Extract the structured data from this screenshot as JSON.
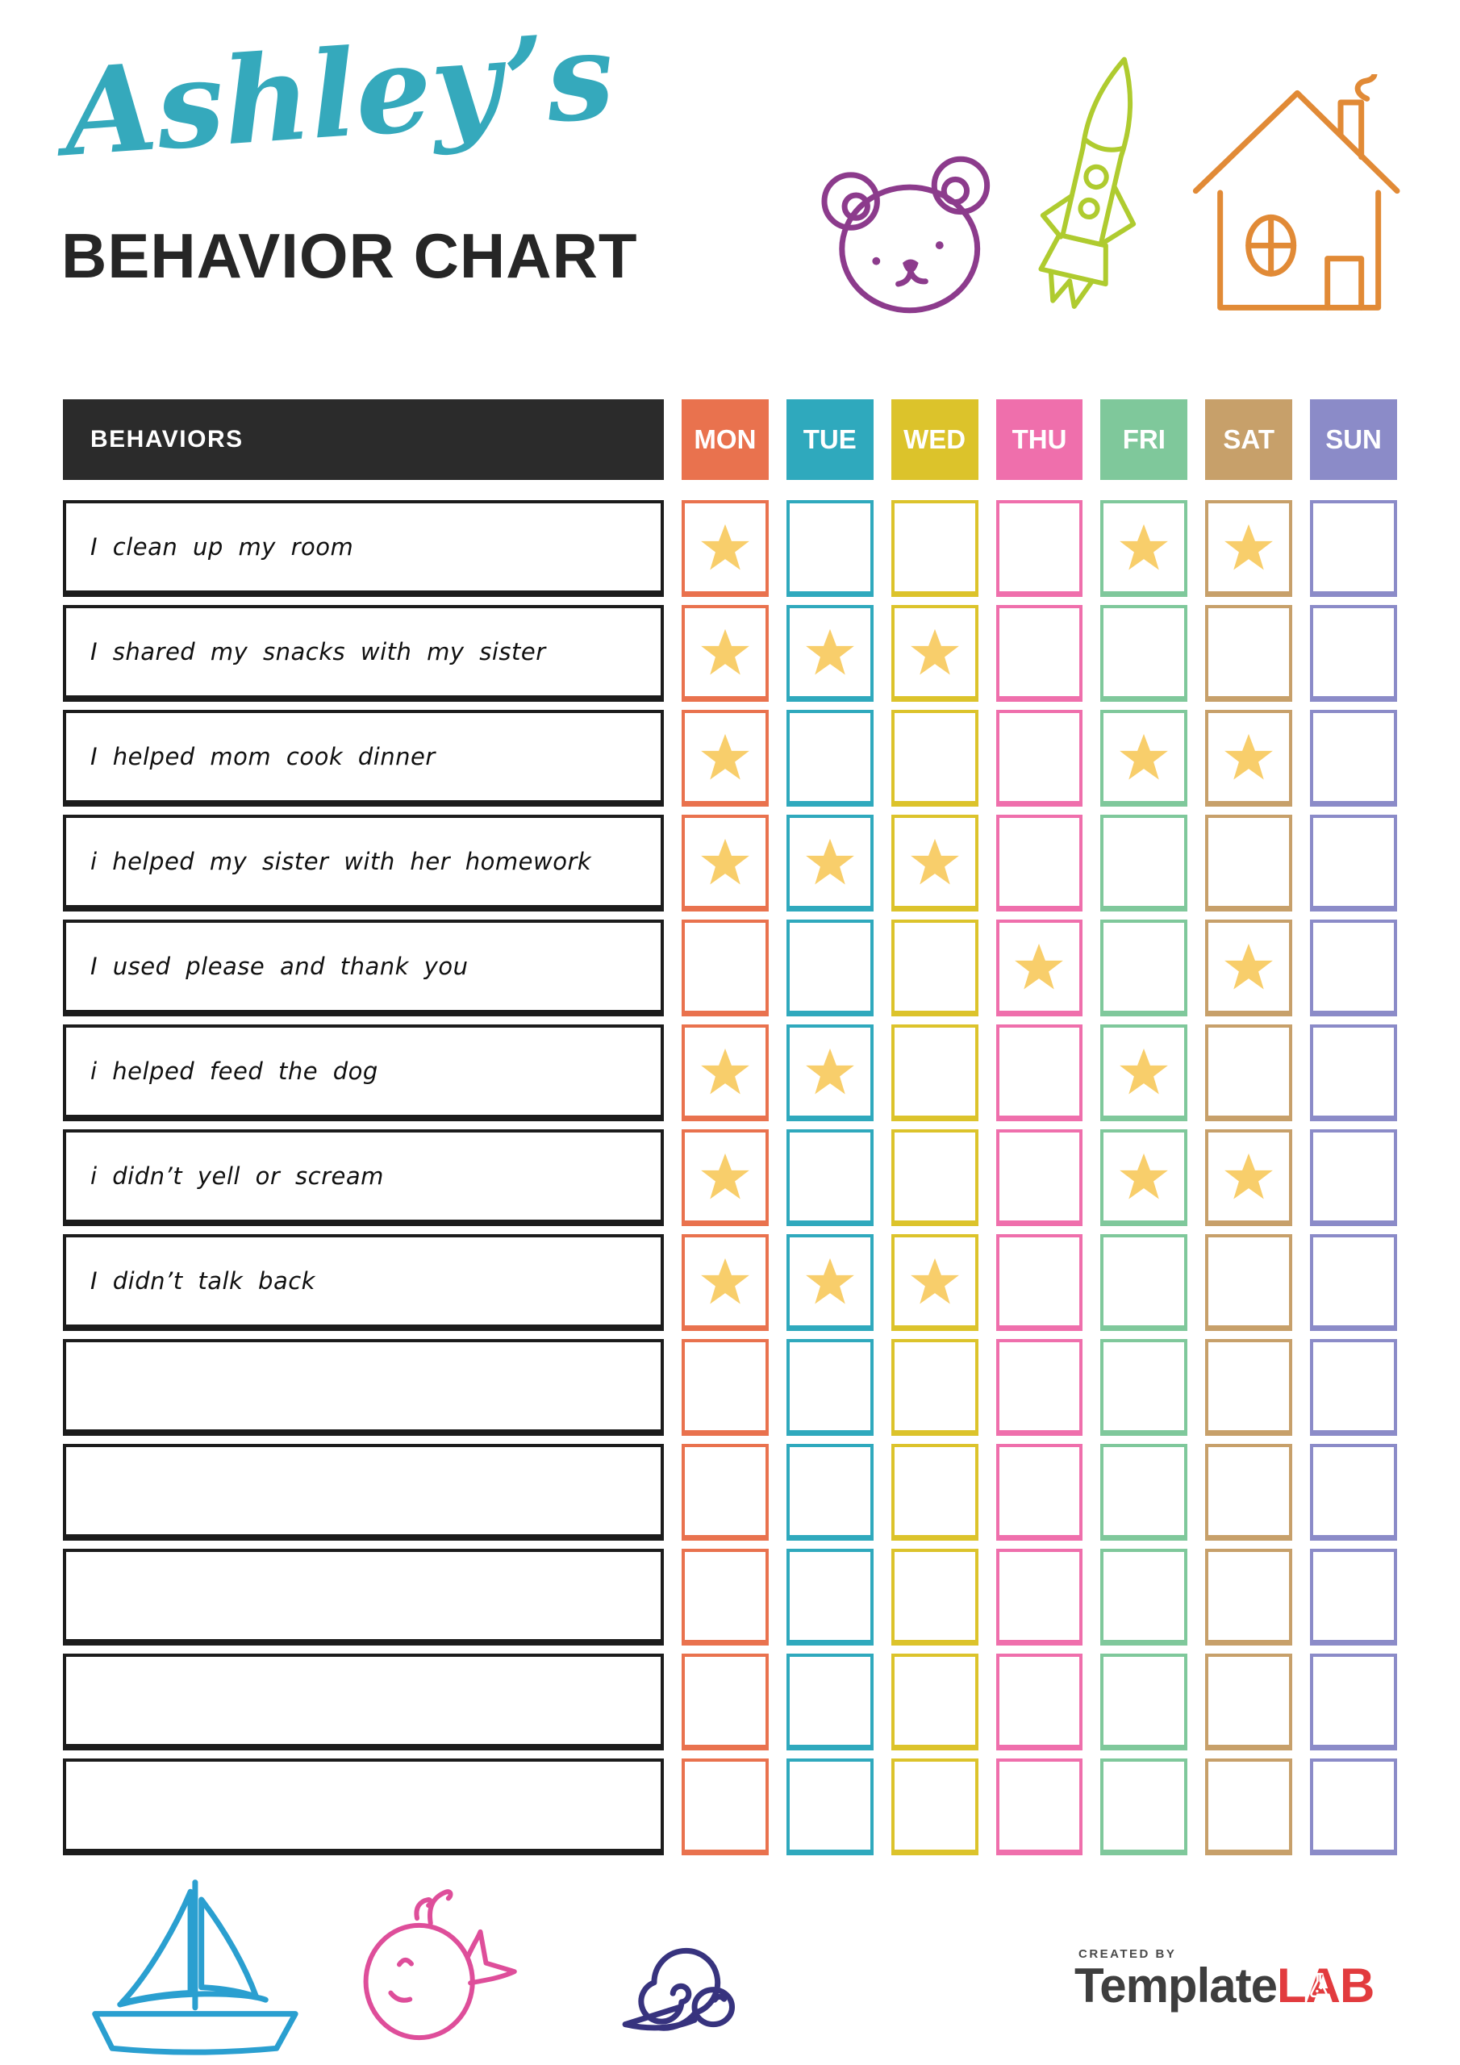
{
  "header": {
    "title_script": "Ashley’s",
    "title_main": "BEHAVIOR CHART",
    "doodles": [
      "bear-icon",
      "rocket-icon",
      "house-icon"
    ]
  },
  "table": {
    "behaviors_header": "BEHAVIORS",
    "days": [
      {
        "label": "MON",
        "color": "#E9724E"
      },
      {
        "label": "TUE",
        "color": "#2FA9BD"
      },
      {
        "label": "WED",
        "color": "#DCC32B"
      },
      {
        "label": "THU",
        "color": "#EF6FAC"
      },
      {
        "label": "FRI",
        "color": "#7FC89B"
      },
      {
        "label": "SAT",
        "color": "#C7A06A"
      },
      {
        "label": "SUN",
        "color": "#8B8BC8"
      }
    ],
    "star_color": "#F8CE6B",
    "rows": [
      {
        "label": "I clean up my room",
        "stars": [
          "MON",
          "FRI",
          "SAT"
        ]
      },
      {
        "label": "I shared my snacks with my sister",
        "stars": [
          "MON",
          "TUE",
          "WED"
        ]
      },
      {
        "label": "I helped mom cook dinner",
        "stars": [
          "MON",
          "FRI",
          "SAT"
        ]
      },
      {
        "label": "i helped my sister with her homework",
        "stars": [
          "MON",
          "TUE",
          "WED"
        ]
      },
      {
        "label": "I used please and thank you",
        "stars": [
          "THU",
          "SAT"
        ]
      },
      {
        "label": "i helped feed the dog",
        "stars": [
          "MON",
          "TUE",
          "FRI"
        ]
      },
      {
        "label": "i didn’t yell or scream",
        "stars": [
          "MON",
          "FRI",
          "SAT"
        ]
      },
      {
        "label": "I didn’t talk back",
        "stars": [
          "MON",
          "TUE",
          "WED"
        ]
      },
      {
        "label": "",
        "stars": []
      },
      {
        "label": "",
        "stars": []
      },
      {
        "label": "",
        "stars": []
      },
      {
        "label": "",
        "stars": []
      },
      {
        "label": "",
        "stars": []
      }
    ]
  },
  "footer": {
    "created_by": "CREATED BY",
    "brand_primary": "Template",
    "brand_accent": "LAB",
    "doodles": [
      "sailboat-icon",
      "whale-icon",
      "snail-icon"
    ]
  },
  "colors": {
    "title_script": "#35A9BC",
    "title_main": "#262626",
    "header_bg": "#2B2B2B",
    "bear": "#8C3B8C",
    "rocket": "#AFCB2F",
    "house": "#E18A36",
    "sailboat": "#2A9FD0",
    "whale": "#DE4E9A",
    "snail": "#37337E",
    "brand_primary": "#3E3E3E",
    "brand_accent": "#E23B3E",
    "created_by": "#4A4A4A"
  }
}
